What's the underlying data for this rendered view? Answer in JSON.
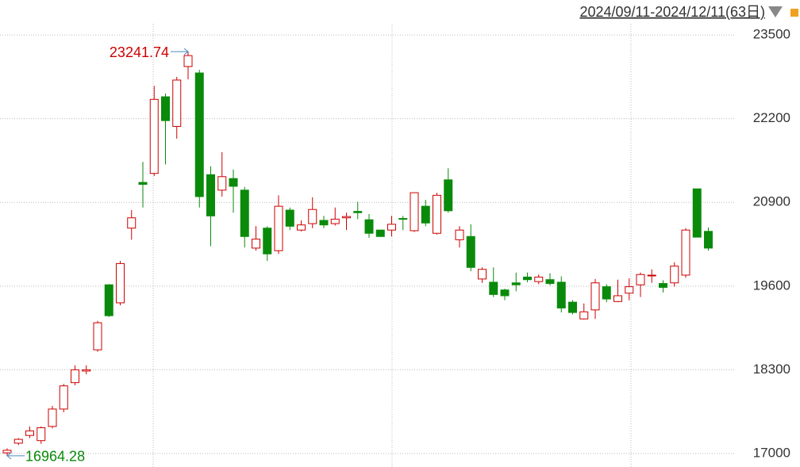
{
  "chart_data": {
    "type": "candlestick",
    "date_range": "2024/09/11-2024/12/11(63日)",
    "ylim": [
      16790,
      23600
    ],
    "yticks": [
      17000,
      18300,
      19600,
      20900,
      22200,
      23500
    ],
    "up_color": "#cc0000",
    "down_color": "#0a8a0a",
    "open": [
      17010,
      17160,
      17280,
      17200,
      17420,
      17690,
      18100,
      18280,
      18610,
      19620,
      19340,
      20500,
      21210,
      21350,
      22540,
      22080,
      23010,
      22910,
      21330,
      21090,
      21270,
      21090,
      20190,
      20500,
      20150,
      20780,
      20470,
      20570,
      20620,
      20570,
      20660,
      20760,
      20630,
      20470,
      20470,
      20650,
      20460,
      20840,
      20420,
      21250,
      20320,
      20370,
      19710,
      19660,
      19540,
      19650,
      19740,
      19670,
      19700,
      19660,
      19350,
      19090,
      19230,
      19590,
      19360,
      19490,
      19620,
      19760,
      19640,
      19650,
      19770,
      21110,
      20450
    ],
    "high": [
      17080,
      17240,
      17420,
      17420,
      17740,
      18080,
      18370,
      18370,
      19060,
      19630,
      19990,
      20780,
      21530,
      22710,
      22590,
      22850,
      23241.74,
      22960,
      21460,
      21680,
      21410,
      21140,
      20530,
      20530,
      21010,
      20820,
      20620,
      20980,
      20690,
      20820,
      20740,
      20910,
      20720,
      20470,
      20690,
      20690,
      21050,
      20940,
      21050,
      21430,
      20530,
      20560,
      19890,
      19890,
      19560,
      19810,
      19810,
      19780,
      19800,
      19750,
      19380,
      19330,
      19710,
      19630,
      19700,
      19720,
      19810,
      19860,
      19690,
      19970,
      20500,
      21110,
      20510
    ],
    "low": [
      16964.28,
      17130,
      17240,
      17150,
      17390,
      17640,
      18060,
      18230,
      18580,
      19120,
      19300,
      20320,
      20820,
      21310,
      21490,
      21890,
      22810,
      20820,
      20220,
      20990,
      20740,
      20200,
      20150,
      19990,
      20100,
      20470,
      20450,
      20500,
      20500,
      20540,
      20470,
      20640,
      20350,
      20370,
      20370,
      20470,
      20440,
      20530,
      20400,
      20740,
      20200,
      19830,
      19650,
      19430,
      19380,
      19520,
      19660,
      19630,
      19610,
      19190,
      19160,
      19080,
      19090,
      19350,
      19350,
      19380,
      19430,
      19650,
      19500,
      19590,
      19730,
      20360,
      20150
    ],
    "close": [
      17050,
      17220,
      17350,
      17400,
      17690,
      18050,
      18300,
      18300,
      19030,
      19140,
      19950,
      20660,
      21180,
      22500,
      22170,
      22800,
      23180,
      20990,
      20690,
      21300,
      21150,
      20370,
      20330,
      20100,
      20840,
      20530,
      20550,
      20790,
      20550,
      20640,
      20680,
      20740,
      20420,
      20370,
      20560,
      20640,
      21050,
      20580,
      21010,
      20770,
      20470,
      19890,
      19860,
      19470,
      19450,
      19620,
      19700,
      19740,
      19640,
      19260,
      19190,
      19200,
      19650,
      19400,
      19450,
      19590,
      19780,
      19770,
      19580,
      19910,
      20470,
      20360,
      20190
    ]
  }
}
